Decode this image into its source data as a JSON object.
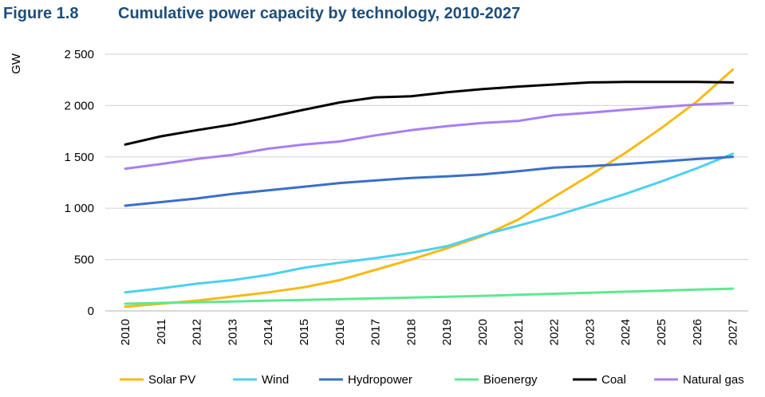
{
  "header": {
    "figure_label": "Figure 1.8",
    "title": "Cumulative power capacity by technology, 2010-2027"
  },
  "chart_data": {
    "type": "line",
    "title": "Cumulative power capacity by technology, 2010-2027",
    "xlabel": "",
    "ylabel": "GW",
    "ylim": [
      0,
      2500
    ],
    "yticks": [
      0,
      500,
      1000,
      1500,
      2000,
      2500
    ],
    "ytick_labels": [
      "0",
      "500",
      "1 000",
      "1 500",
      "2 000",
      "2 500"
    ],
    "grid": true,
    "legend_position": "bottom",
    "x": [
      "2010",
      "2011",
      "2012",
      "2013",
      "2014",
      "2015",
      "2016",
      "2017",
      "2018",
      "2019",
      "2020",
      "2021",
      "2022",
      "2023",
      "2024",
      "2025",
      "2026",
      "2027"
    ],
    "series": [
      {
        "name": "Solar PV",
        "color": "#f9b912",
        "values": [
          40,
          70,
          100,
          140,
          180,
          230,
          300,
          400,
          500,
          610,
          730,
          890,
          1110,
          1320,
          1540,
          1780,
          2040,
          2350
        ]
      },
      {
        "name": "Wind",
        "color": "#4dd0f0",
        "values": [
          180,
          220,
          265,
          300,
          350,
          420,
          470,
          515,
          565,
          630,
          740,
          830,
          925,
          1030,
          1140,
          1260,
          1390,
          1530
        ]
      },
      {
        "name": "Hydropower",
        "color": "#3a6fc8",
        "values": [
          1025,
          1060,
          1095,
          1140,
          1175,
          1210,
          1245,
          1270,
          1295,
          1310,
          1330,
          1360,
          1395,
          1410,
          1430,
          1455,
          1480,
          1500
        ]
      },
      {
        "name": "Bioenergy",
        "color": "#5ee890",
        "values": [
          70,
          78,
          85,
          92,
          100,
          107,
          115,
          122,
          130,
          138,
          147,
          157,
          167,
          177,
          187,
          197,
          207,
          217
        ]
      },
      {
        "name": "Coal",
        "color": "#000000",
        "values": [
          1620,
          1700,
          1760,
          1815,
          1885,
          1960,
          2030,
          2080,
          2090,
          2130,
          2160,
          2185,
          2205,
          2225,
          2230,
          2230,
          2230,
          2225
        ]
      },
      {
        "name": "Natural gas",
        "color": "#a87ff0",
        "values": [
          1385,
          1430,
          1480,
          1520,
          1580,
          1620,
          1650,
          1710,
          1760,
          1800,
          1830,
          1850,
          1905,
          1930,
          1960,
          1985,
          2010,
          2025
        ]
      }
    ]
  }
}
